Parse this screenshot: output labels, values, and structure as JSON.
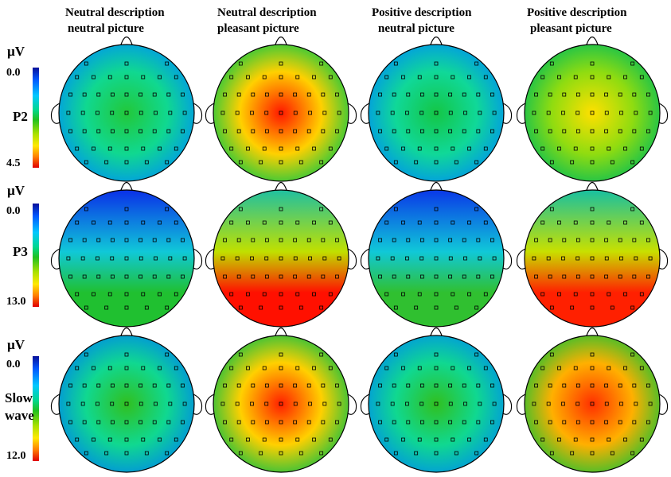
{
  "columns": [
    {
      "line1": "Neutral description",
      "line2": "neutral picture"
    },
    {
      "line1": "Neutral description",
      "line2": "pleasant picture"
    },
    {
      "line1": "Positive description",
      "line2": "neutral picture"
    },
    {
      "line1": "Positive description",
      "line2": "pleasant picture"
    }
  ],
  "rows": [
    {
      "label": "P2",
      "unit": "µV",
      "min": "0.0",
      "max": "4.5",
      "maps": [
        {
          "center": "#22c83a",
          "mid": "#10d890",
          "edge": "#009ae8"
        },
        {
          "center": "#ff1800",
          "mid": "#ffd000",
          "edge": "#20c840"
        },
        {
          "center": "#14c646",
          "mid": "#10d898",
          "edge": "#0098e8"
        },
        {
          "center": "#ffe000",
          "mid": "#90dc10",
          "edge": "#10c050"
        }
      ]
    },
    {
      "label": "P3",
      "unit": "µV",
      "min": "0.0",
      "max": "13.0",
      "maps": [
        {
          "top": "#0a30e8",
          "mid": "#10c8d8",
          "bottom": "#20c030"
        },
        {
          "top": "#20c0a0",
          "mid": "#c0e000",
          "bottom": "#ff1000"
        },
        {
          "top": "#0a38e8",
          "mid": "#10c8d8",
          "bottom": "#30c030"
        },
        {
          "top": "#18c0a0",
          "mid": "#c8e000",
          "bottom": "#ff2000"
        }
      ]
    },
    {
      "label": "Slow wave",
      "label1": "Slow",
      "label2": "wave",
      "unit": "µV",
      "min": "0.0",
      "max": "12.0",
      "maps": [
        {
          "center": "#30c020",
          "mid": "#10d890",
          "edge": "#0090e0"
        },
        {
          "center": "#ff2000",
          "mid": "#ffd000",
          "edge": "#20c040"
        },
        {
          "center": "#30c020",
          "mid": "#10d890",
          "edge": "#0098e0"
        },
        {
          "center": "#ff3000",
          "mid": "#ffb000",
          "edge": "#30c030"
        }
      ]
    }
  ]
}
